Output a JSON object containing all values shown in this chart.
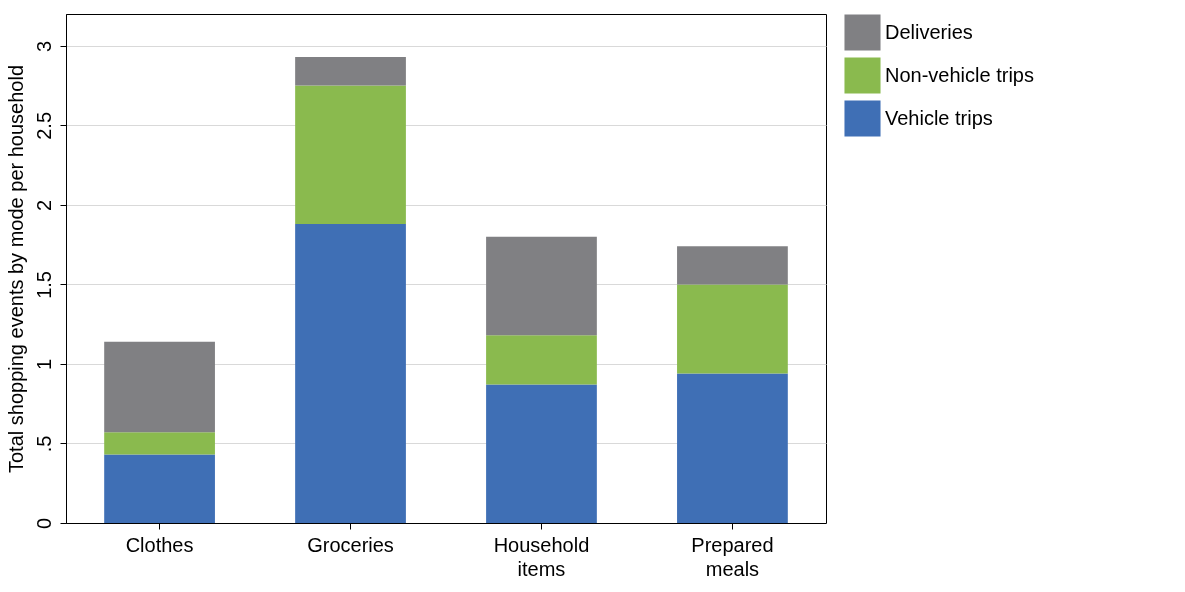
{
  "chart_data": {
    "type": "bar",
    "stacked": true,
    "ylabel": "Total shopping events by mode per household",
    "categories": [
      "Clothes",
      "Groceries",
      "Household items",
      "Prepared meals"
    ],
    "series": [
      {
        "name": "Vehicle trips",
        "color": "#3f6fb5",
        "values": [
          0.43,
          1.88,
          0.87,
          0.94
        ]
      },
      {
        "name": "Non-vehicle trips",
        "color": "#8aba4e",
        "values": [
          0.14,
          0.87,
          0.31,
          0.56
        ]
      },
      {
        "name": "Deliveries",
        "color": "#808083",
        "values": [
          0.57,
          0.18,
          0.62,
          0.24
        ]
      }
    ],
    "ylim": [
      0,
      3.2
    ],
    "yticks": [
      0,
      {
        "value": 0.5,
        "label": ".5"
      },
      1,
      1.5,
      2,
      {
        "value": 2.5,
        "label": "2.5"
      },
      3
    ],
    "grid": "y",
    "legend": "right"
  }
}
